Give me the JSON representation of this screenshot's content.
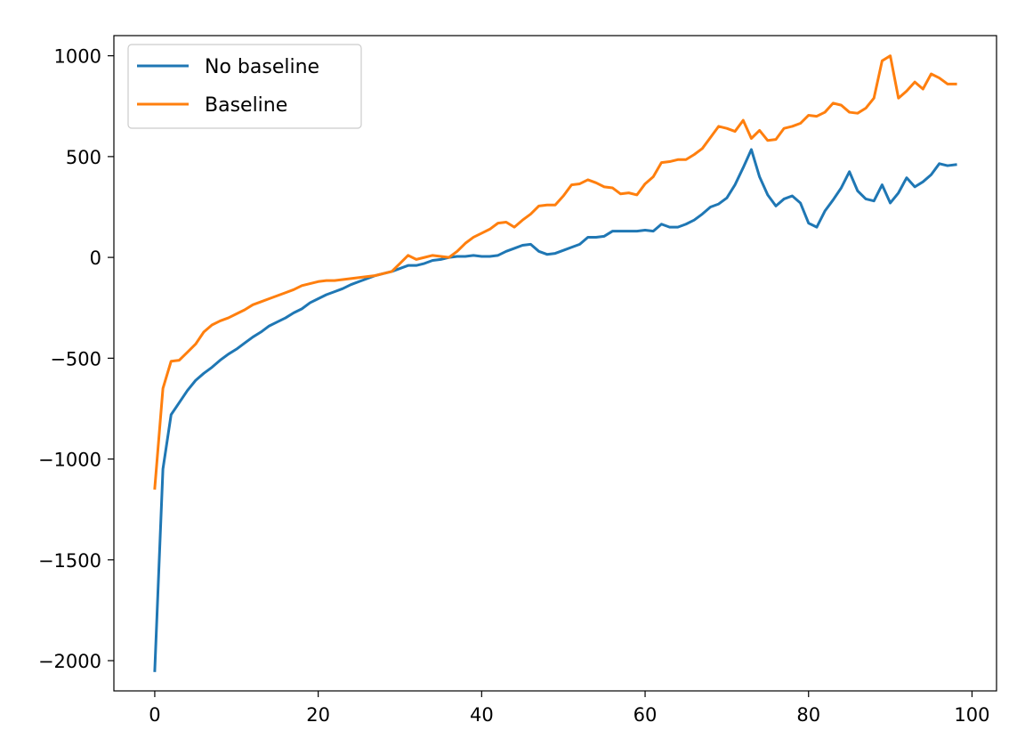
{
  "chart_data": {
    "type": "line",
    "title": "",
    "xlabel": "",
    "ylabel": "",
    "xlim": [
      -5,
      103
    ],
    "ylim": [
      -2150,
      1100
    ],
    "xticks": [
      0,
      20,
      40,
      60,
      80,
      100
    ],
    "yticks": [
      -2000,
      -1500,
      -1000,
      -500,
      0,
      500,
      1000
    ],
    "xtick_labels": [
      "0",
      "20",
      "40",
      "60",
      "80",
      "100"
    ],
    "ytick_labels": [
      "−2000",
      "−1500",
      "−1000",
      "−500",
      "0",
      "500",
      "1000"
    ],
    "grid": false,
    "legend_position": "top-left",
    "x_start": 0,
    "series": [
      {
        "name": "No baseline",
        "color": "#1f77b4",
        "values": [
          -2050,
          -1050,
          -780,
          -720,
          -660,
          -610,
          -575,
          -545,
          -510,
          -480,
          -455,
          -425,
          -395,
          -370,
          -340,
          -320,
          -300,
          -275,
          -255,
          -225,
          -205,
          -185,
          -170,
          -155,
          -135,
          -120,
          -105,
          -90,
          -80,
          -70,
          -55,
          -40,
          -40,
          -30,
          -15,
          -10,
          0,
          5,
          5,
          10,
          5,
          5,
          10,
          30,
          45,
          60,
          65,
          30,
          15,
          20,
          35,
          50,
          65,
          100,
          100,
          105,
          130,
          130,
          130,
          130,
          135,
          130,
          165,
          150,
          150,
          165,
          185,
          215,
          250,
          265,
          295,
          360,
          445,
          535,
          400,
          310,
          255,
          290,
          305,
          270,
          170,
          150,
          230,
          285,
          345,
          425,
          330,
          290,
          280,
          360,
          270,
          320,
          395,
          350,
          375,
          410,
          465,
          455,
          460
        ]
      },
      {
        "name": "Baseline",
        "color": "#ff7f0e",
        "values": [
          -1145,
          -650,
          -515,
          -510,
          -470,
          -430,
          -370,
          -335,
          -315,
          -300,
          -280,
          -260,
          -235,
          -220,
          -205,
          -190,
          -175,
          -160,
          -140,
          -130,
          -120,
          -115,
          -115,
          -110,
          -105,
          -100,
          -95,
          -90,
          -80,
          -70,
          -30,
          10,
          -10,
          0,
          10,
          5,
          0,
          30,
          70,
          100,
          120,
          140,
          170,
          175,
          150,
          185,
          215,
          255,
          260,
          260,
          305,
          360,
          365,
          385,
          370,
          350,
          345,
          315,
          320,
          310,
          365,
          400,
          470,
          475,
          485,
          485,
          510,
          540,
          595,
          650,
          640,
          625,
          680,
          590,
          630,
          580,
          585,
          640,
          650,
          665,
          705,
          700,
          720,
          765,
          755,
          720,
          715,
          740,
          790,
          975,
          1000,
          790,
          825,
          870,
          835,
          910,
          890,
          860,
          860
        ]
      }
    ]
  }
}
